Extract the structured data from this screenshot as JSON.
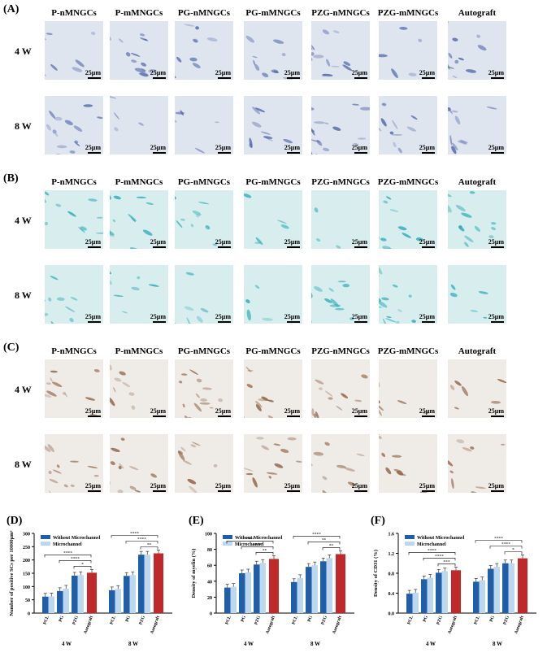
{
  "panels": {
    "A": {
      "letter": "(A)"
    },
    "B": {
      "letter": "(B)"
    },
    "C": {
      "letter": "(C)"
    }
  },
  "column_titles": [
    "P-nMNGCs",
    "P-mMNGCs",
    "PG-nMNGCs",
    "PG-mMNGCs",
    "PZG-nMNGCs",
    "PZG-mMNGCs",
    "Autograft"
  ],
  "row_labels": [
    "4 W",
    "8 W"
  ],
  "scale_label": "25μm",
  "tile_colors": {
    "A": {
      "bg": "#dfe5ee",
      "cell": "#4a62a8"
    },
    "B": {
      "bg": "#d8eeee",
      "cell": "#23a8b5"
    },
    "C": {
      "bg": "#efece8",
      "cell": "#8a5a3a"
    }
  },
  "chart_data": [
    {
      "id": "D",
      "letter": "(D)",
      "type": "bar",
      "ylabel": "Number of positive SCs per 10000μm²",
      "ylim": [
        0,
        300
      ],
      "yticks": [
        "0",
        "50",
        "100",
        "150",
        "200",
        "250",
        "300"
      ],
      "groups": [
        "4 W",
        "8 W"
      ],
      "categories": [
        "PCL",
        "PG",
        "PZG",
        "Autograft"
      ],
      "series": [
        {
          "name": "Without Microchannel",
          "color": "#1f5fa8",
          "values": {
            "4 W": [
              62,
              83,
              141,
              152
            ],
            "8 W": [
              86,
              140,
              220,
              225
            ]
          }
        },
        {
          "name": "Microchannel",
          "color": "#bcd7ee",
          "values": {
            "4 W": [
              63,
              92,
              143,
              null
            ],
            "8 W": [
              91,
              143,
              220,
              null
            ]
          }
        }
      ],
      "autograft_color": "#c0282a",
      "significance": [
        "****",
        "****",
        "*",
        "****",
        "****",
        "**"
      ]
    },
    {
      "id": "E",
      "letter": "(E)",
      "type": "bar",
      "ylabel": "Density of myelin (%)",
      "ylim": [
        0,
        100
      ],
      "yticks": [
        "0",
        "20",
        "40",
        "60",
        "80",
        "100"
      ],
      "groups": [
        "4 W",
        "8 W"
      ],
      "categories": [
        "PCL",
        "PG",
        "PZG",
        "Autograft"
      ],
      "series": [
        {
          "name": "Without Microchannel",
          "color": "#1f5fa8",
          "values": {
            "4 W": [
              32,
              50,
              61,
              68
            ],
            "8 W": [
              39,
              58,
              65,
              74
            ]
          }
        },
        {
          "name": "Microchannel",
          "color": "#bcd7ee",
          "values": {
            "4 W": [
              33,
              51,
              63,
              null
            ],
            "8 W": [
              44,
              60,
              69,
              null
            ]
          }
        }
      ],
      "autograft_color": "#c0282a",
      "significance": [
        "****",
        "****",
        "**",
        "****",
        "**",
        "**"
      ]
    },
    {
      "id": "F",
      "letter": "(F)",
      "type": "bar",
      "ylabel": "Density of CD31 (%)",
      "ylim": [
        0,
        1.6
      ],
      "yticks": [
        "0.0",
        "0.4",
        "0.8",
        "1.2",
        "1.6"
      ],
      "groups": [
        "4 W",
        "8 W"
      ],
      "categories": [
        "PCL",
        "PG",
        "PZG",
        "Autograft"
      ],
      "series": [
        {
          "name": "Without Microchannel",
          "color": "#1f5fa8",
          "values": {
            "4 W": [
              0.39,
              0.68,
              0.81,
              0.86
            ],
            "8 W": [
              0.63,
              0.89,
              1.0,
              1.1
            ]
          }
        },
        {
          "name": "Microchannel",
          "color": "#bcd7ee",
          "values": {
            "4 W": [
              0.41,
              0.71,
              0.84,
              null
            ],
            "8 W": [
              0.66,
              0.93,
              1.0,
              null
            ]
          }
        }
      ],
      "autograft_color": "#c0282a",
      "significance": [
        "****",
        "****",
        "***",
        "****",
        "****",
        "*"
      ]
    }
  ]
}
